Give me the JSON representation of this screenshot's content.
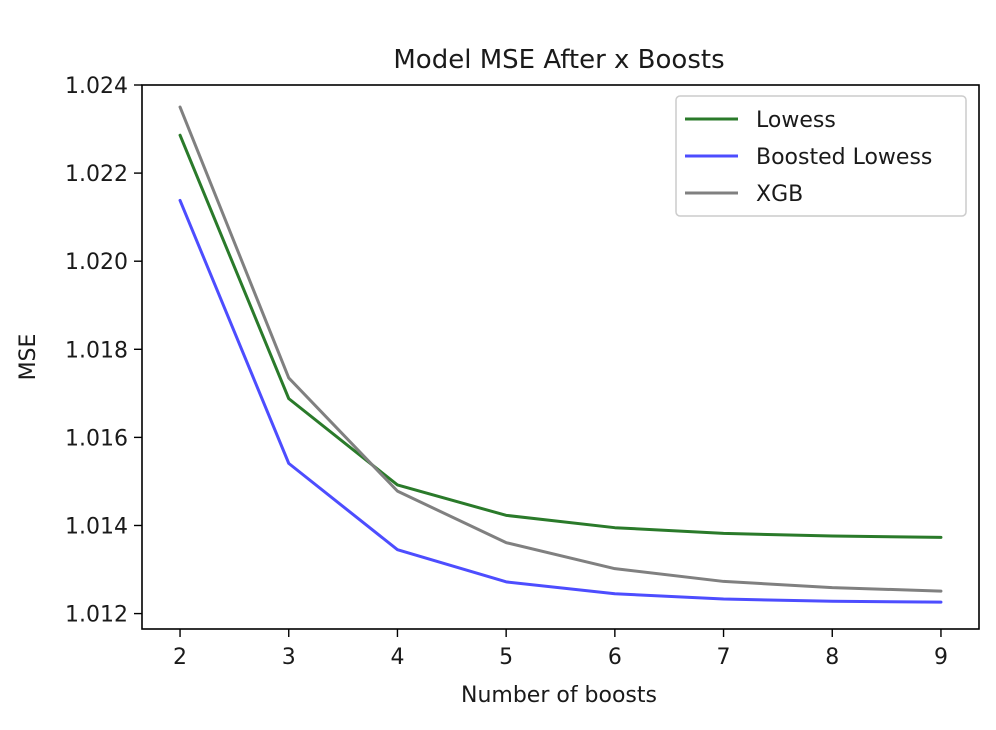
{
  "chart_data": {
    "type": "line",
    "title": "Model MSE After x Boosts",
    "xlabel": "Number of boosts",
    "ylabel": "MSE",
    "x": [
      2,
      3,
      4,
      5,
      6,
      7,
      8,
      9
    ],
    "xlim": [
      1.65,
      9.35
    ],
    "ylim": [
      1.01165,
      1.024
    ],
    "xticks": [
      2,
      3,
      4,
      5,
      6,
      7,
      8,
      9
    ],
    "yticks": [
      1.012,
      1.014,
      1.016,
      1.018,
      1.02,
      1.022,
      1.024
    ],
    "ytick_labels": [
      "1.012",
      "1.014",
      "1.016",
      "1.018",
      "1.020",
      "1.022",
      "1.024"
    ],
    "grid": false,
    "legend_position": "top-right",
    "series": [
      {
        "name": "Lowess",
        "color": "#2a7a2a",
        "values": [
          1.02286,
          1.01688,
          1.01492,
          1.01423,
          1.01395,
          1.01382,
          1.01376,
          1.01373
        ]
      },
      {
        "name": "Boosted Lowess",
        "color": "#4d4dff",
        "values": [
          1.02138,
          1.01541,
          1.01345,
          1.01272,
          1.01245,
          1.01233,
          1.01228,
          1.01226
        ]
      },
      {
        "name": "XGB",
        "color": "#808080",
        "values": [
          1.0235,
          1.01735,
          1.01478,
          1.01361,
          1.01302,
          1.01273,
          1.01259,
          1.01251
        ]
      }
    ]
  }
}
